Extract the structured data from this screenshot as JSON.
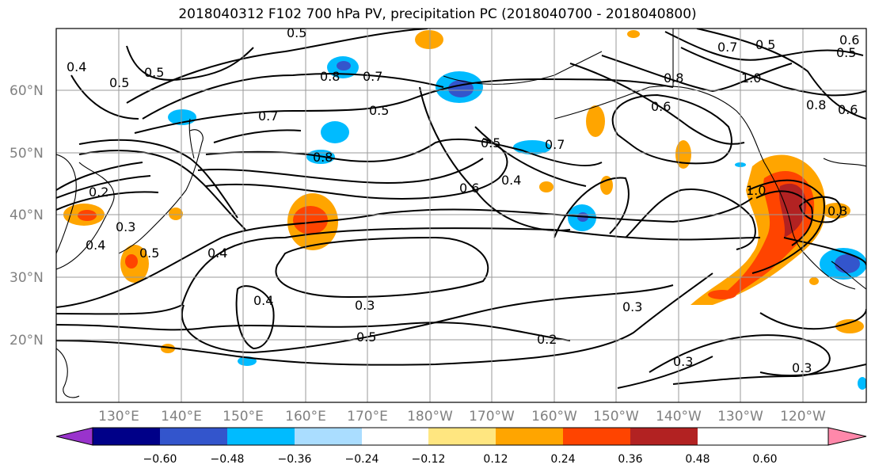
{
  "title": "2018040312 F102 700 hPa PV, precipitation PC (2018040700 - 2018040800)",
  "lat_labels": [
    "60°N",
    "50°N",
    "40°N",
    "30°N",
    "20°N"
  ],
  "lon_labels": [
    "130°E",
    "140°E",
    "150°E",
    "160°E",
    "170°E",
    "180°W",
    "170°W",
    "160°W",
    "150°W",
    "140°W",
    "130°W",
    "120°W"
  ],
  "colorbar": {
    "ticks": [
      "−0.60",
      "−0.48",
      "−0.36",
      "−0.24",
      "−0.12",
      "0.12",
      "0.24",
      "0.36",
      "0.48",
      "0.60"
    ],
    "colors": [
      "#9933cc",
      "#000088",
      "#3355cc",
      "#00bbff",
      "#aaddff",
      "#ffffff",
      "#ffe680",
      "#ffa500",
      "#ff4400",
      "#b22222",
      "#ff88aa"
    ]
  },
  "contour_labels": [
    "0.5",
    "0.4",
    "0.5",
    "0.5",
    "0.8",
    "0.7",
    "0.7",
    "0.5",
    "0.8",
    "0.5",
    "0.6",
    "0.7",
    "0.4",
    "0.6",
    "0.8",
    "0.6",
    "0.7",
    "0.5",
    "1.0",
    "0.5",
    "0.8",
    "0.6",
    "0.2",
    "0.3",
    "0.4",
    "0.5",
    "0.4",
    "0.4",
    "0.3",
    "0.5",
    "0.2",
    "0.3",
    "0.3",
    "0.3",
    "1.0",
    "0.3"
  ]
}
